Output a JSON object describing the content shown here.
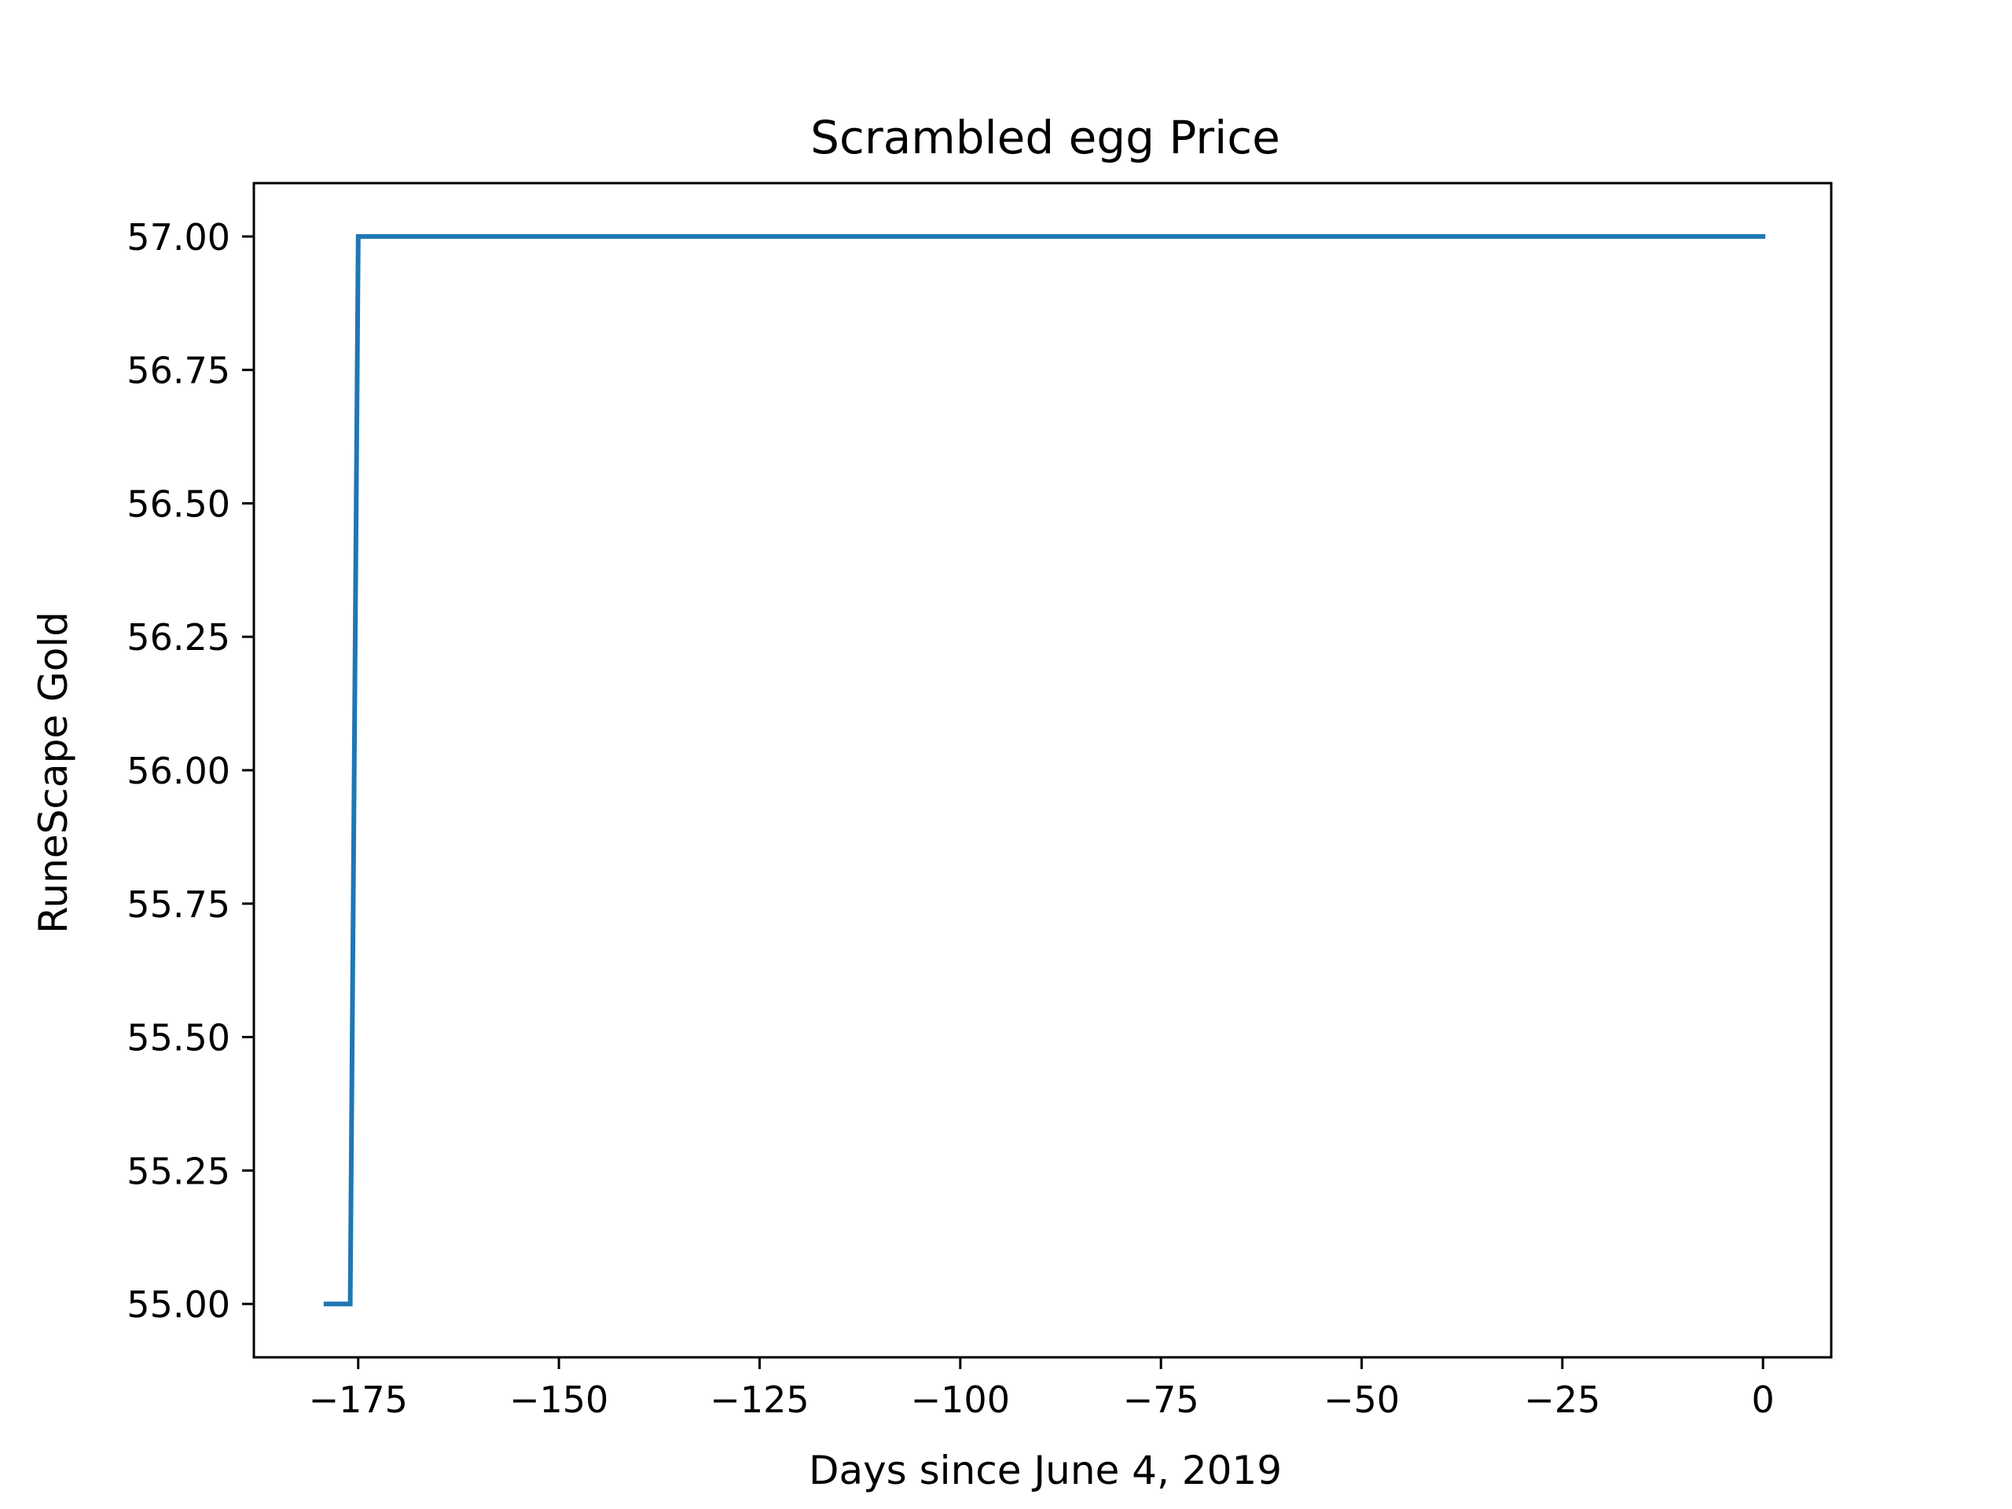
{
  "chart_data": {
    "type": "line",
    "title": "Scrambled egg Price",
    "xlabel": "Days since June 4, 2019",
    "ylabel": "RuneScape Gold",
    "xlim": [
      -188,
      8.5
    ],
    "ylim": [
      54.9,
      57.1
    ],
    "grid": false,
    "line_color": "#1f77b4",
    "x_ticks": [
      -175,
      -150,
      -125,
      -100,
      -75,
      -50,
      -25,
      0
    ],
    "x_tick_labels": [
      "−175",
      "−150",
      "−125",
      "−100",
      "−75",
      "−50",
      "−25",
      "0"
    ],
    "y_ticks": [
      55.0,
      55.25,
      55.5,
      55.75,
      56.0,
      56.25,
      56.5,
      56.75,
      57.0
    ],
    "y_tick_labels": [
      "55.00",
      "55.25",
      "55.50",
      "55.75",
      "56.00",
      "56.25",
      "56.50",
      "56.75",
      "57.00"
    ],
    "series": [
      {
        "x": [
          -179,
          -178,
          -177,
          -176,
          -175,
          -174,
          0
        ],
        "y": [
          55,
          55,
          55,
          55,
          57,
          57,
          57
        ]
      }
    ]
  }
}
